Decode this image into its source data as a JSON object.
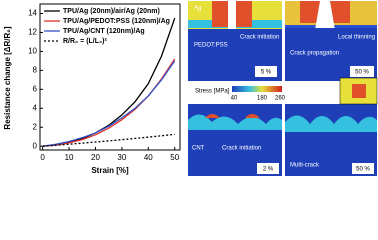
{
  "chart_data": {
    "type": "line",
    "ylabel": "Resistance change [ΔR/R₀]",
    "xlabel": "Strain [%]",
    "x": [
      0,
      5,
      10,
      15,
      20,
      25,
      30,
      35,
      40,
      45,
      50
    ],
    "series": [
      {
        "name": "TPU/Ag (20nm)/air/Ag (20nm)",
        "color": "#000000",
        "style": "solid",
        "values": [
          0,
          0.15,
          0.4,
          0.8,
          1.4,
          2.2,
          3.3,
          4.7,
          6.6,
          9.5,
          13.5
        ]
      },
      {
        "name": "TPU/Ag/PEDOT:PSS (120nm)/Ag",
        "color": "#e0322b",
        "style": "solid",
        "values": [
          0,
          0.1,
          0.35,
          0.7,
          1.2,
          1.9,
          2.8,
          3.9,
          5.3,
          7.1,
          9.2
        ]
      },
      {
        "name": "TPU/Ag/CNT (120nm)/Ag",
        "color": "#3350c8",
        "style": "solid",
        "values": [
          0,
          0.2,
          0.5,
          0.9,
          1.4,
          2.1,
          3.0,
          4.0,
          5.3,
          7.0,
          9.0
        ]
      },
      {
        "name": "R/R₀ = (L/L₀)²",
        "color": "#000000",
        "style": "dotted",
        "values": [
          0,
          0.1025,
          0.21,
          0.3225,
          0.44,
          0.5625,
          0.69,
          0.8225,
          0.96,
          1.1025,
          1.25
        ]
      }
    ],
    "xlim": [
      -1,
      52
    ],
    "xticks": [
      0,
      10,
      20,
      30,
      40,
      50
    ],
    "ylim": [
      -0.4,
      15
    ],
    "yticks": [
      0,
      2,
      4,
      6,
      8,
      10,
      12,
      14
    ]
  },
  "panels": [
    {
      "texts": [
        "Ag",
        "PEDOT:PSS",
        "Crack initiation",
        "5 %"
      ]
    },
    {
      "texts": [
        "Local thinning",
        "Crack propagation",
        "50 %"
      ]
    },
    {
      "texts": [
        "CNT",
        "Crack initiation",
        "2 %"
      ]
    },
    {
      "texts": [
        "Multi-crack",
        "50 %"
      ]
    }
  ],
  "colorbar": {
    "title": "Stress [MPa]",
    "ticks": [
      "40",
      "180",
      "260"
    ]
  }
}
